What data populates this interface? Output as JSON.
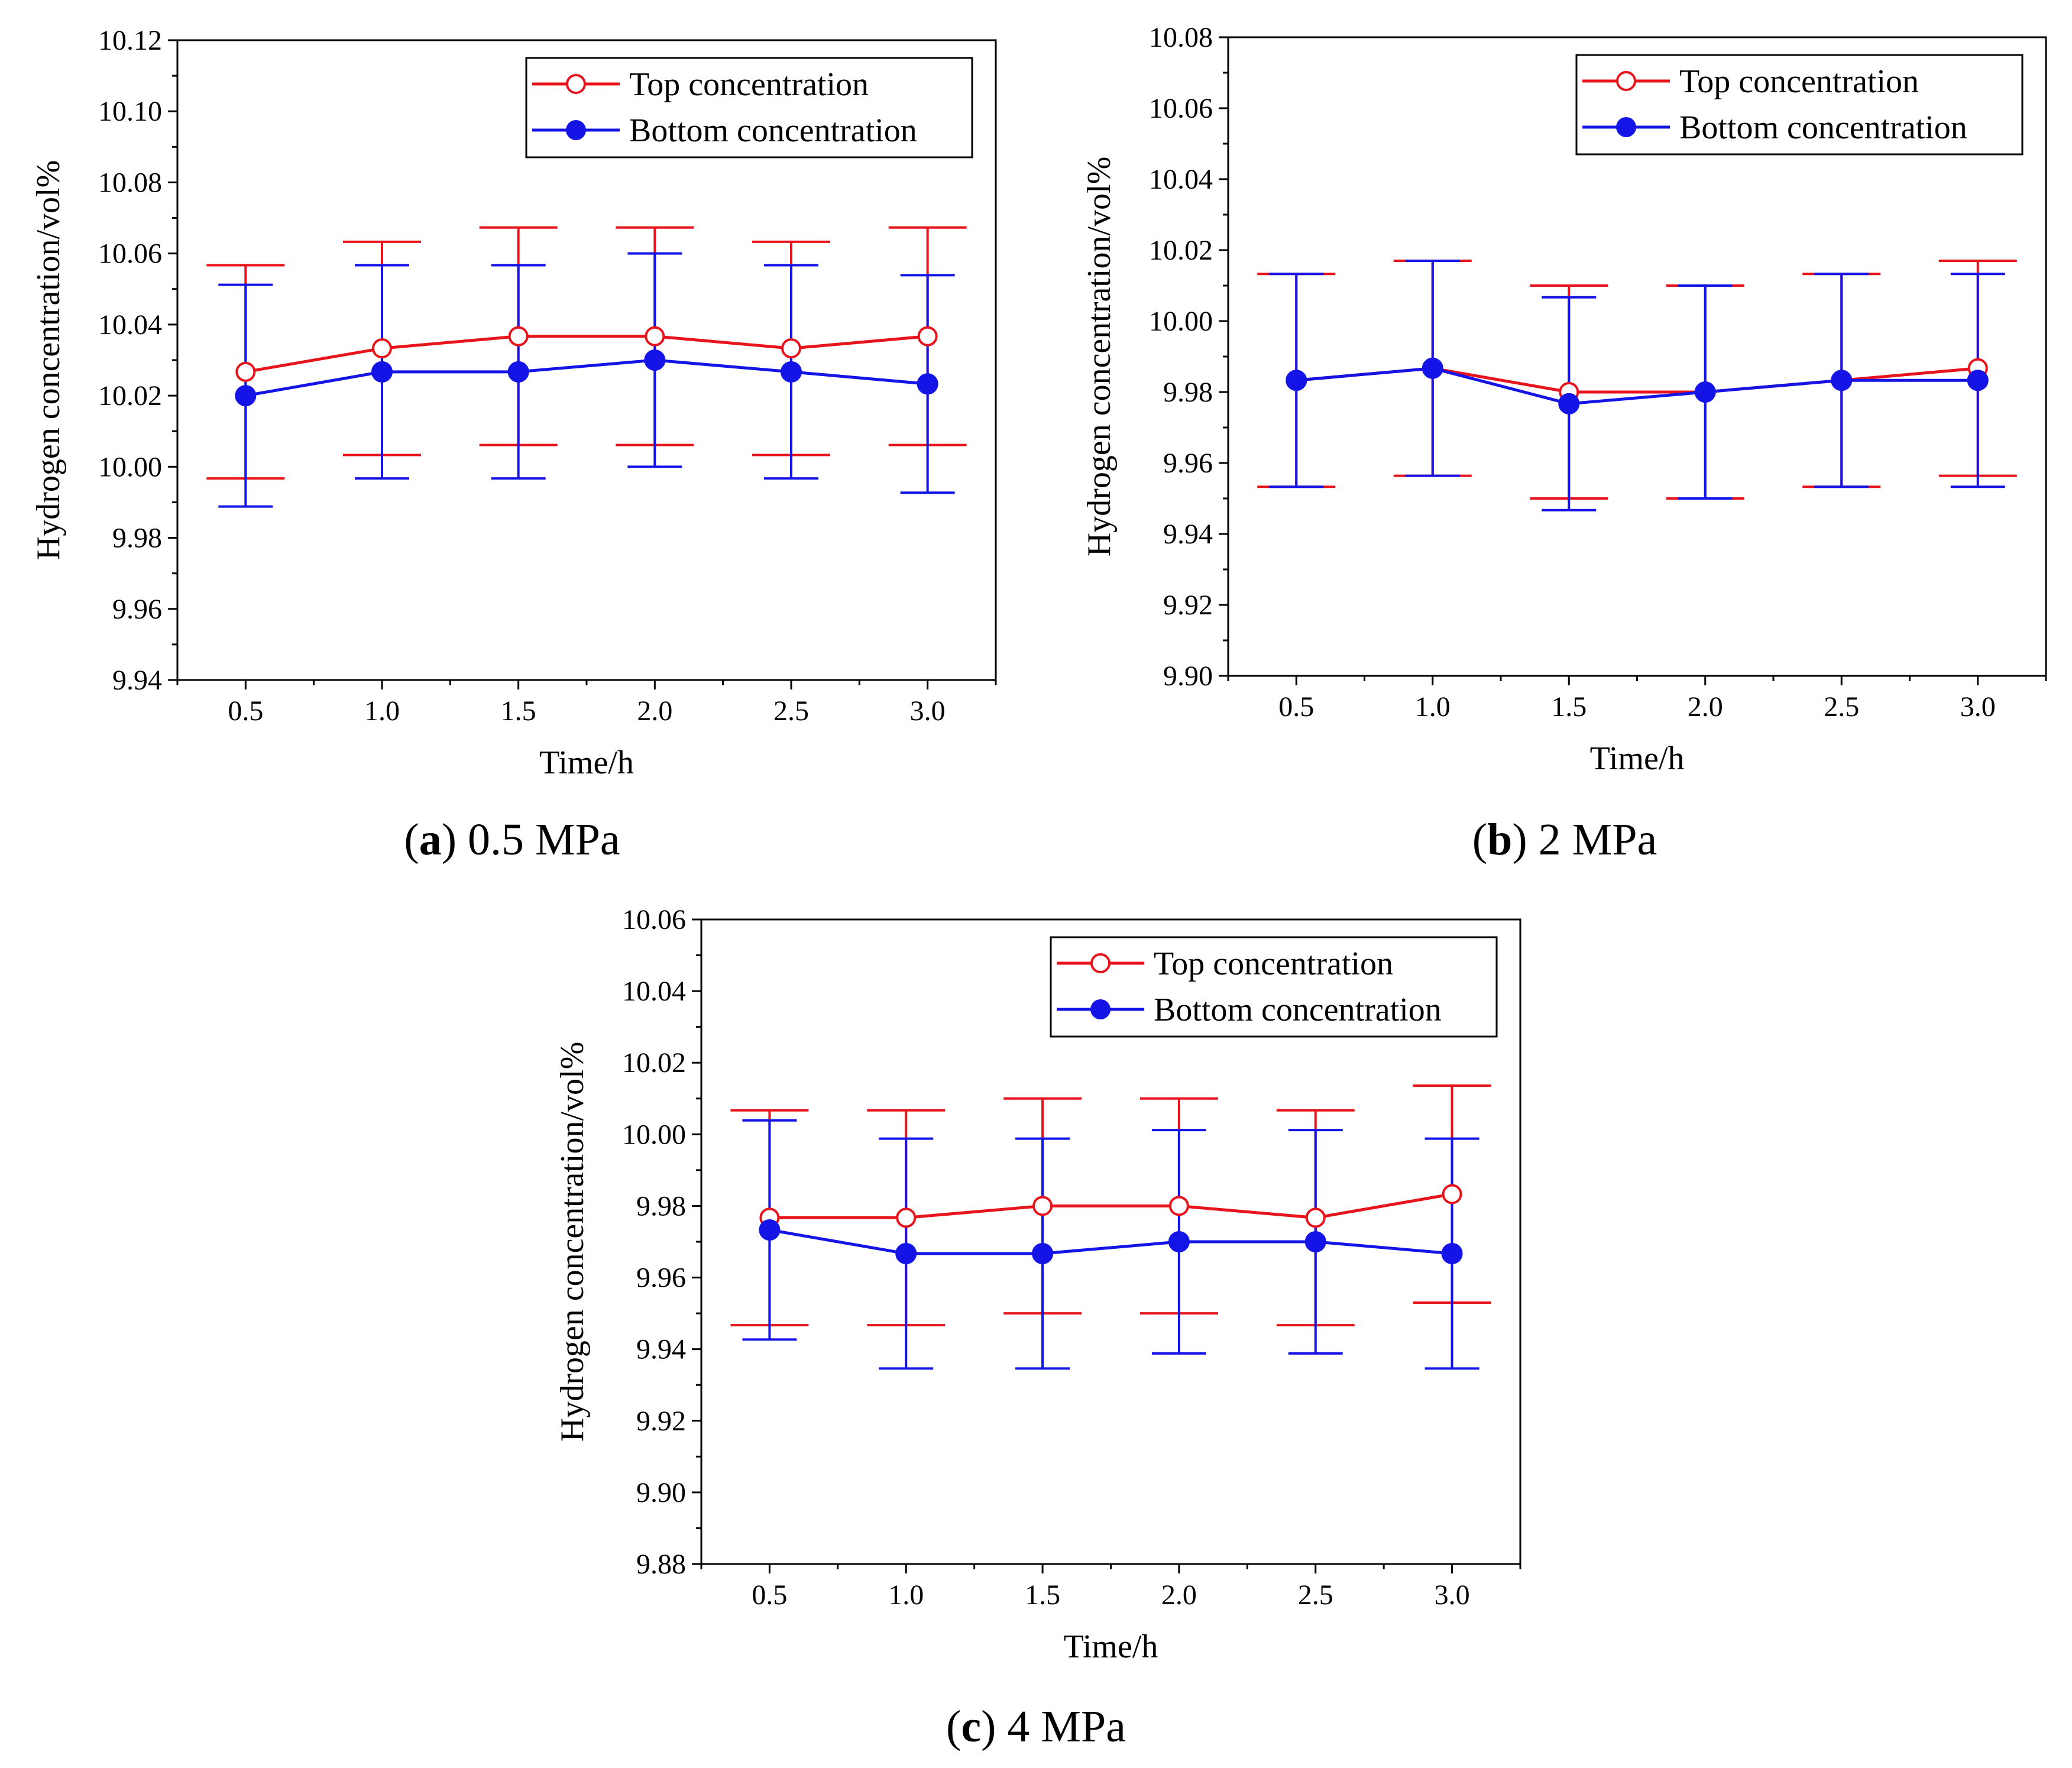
{
  "figure": {
    "panels": [
      {
        "letter": "a",
        "caption": "0.5 MPa"
      },
      {
        "letter": "b",
        "caption": "2 MPa"
      },
      {
        "letter": "c",
        "caption": "4 MPa"
      }
    ]
  },
  "colors": {
    "top": "#e8141b",
    "bottom": "#1414e6",
    "axis": "#000000"
  },
  "chart_data": [
    {
      "type": "line",
      "title": "",
      "xlabel": "Time/h",
      "ylabel": "Hydrogen concentration/vol%",
      "x": [
        0.5,
        1.0,
        1.5,
        2.0,
        2.5,
        3.0
      ],
      "x_ticks": [
        "0.5",
        "1.0",
        "1.5",
        "2.0",
        "2.5",
        "3.0"
      ],
      "xlim": [
        0.25,
        3.25
      ],
      "ylim": [
        9.94,
        10.12
      ],
      "y_ticks": [
        "9.94",
        "9.96",
        "9.98",
        "10.00",
        "10.02",
        "10.04",
        "10.06",
        "10.08",
        "10.10",
        "10.12"
      ],
      "legend_position": "top-right",
      "series": [
        {
          "name": "Top concentration",
          "marker": "open-circle",
          "values": [
            10.0267,
            10.0333,
            10.0367,
            10.0367,
            10.0333,
            10.0367
          ],
          "error": [
            0.03,
            0.03,
            0.0306,
            0.0306,
            0.03,
            0.0306
          ]
        },
        {
          "name": "Bottom concentration",
          "marker": "filled-circle",
          "values": [
            10.02,
            10.0267,
            10.0267,
            10.03,
            10.0267,
            10.0233
          ],
          "error": [
            0.0312,
            0.03,
            0.03,
            0.03,
            0.03,
            0.0306
          ]
        }
      ]
    },
    {
      "type": "line",
      "title": "",
      "xlabel": "Time/h",
      "ylabel": "Hydrogen concentration/vol%",
      "x": [
        0.5,
        1.0,
        1.5,
        2.0,
        2.5,
        3.0
      ],
      "x_ticks": [
        "0.5",
        "1.0",
        "1.5",
        "2.0",
        "2.5",
        "3.0"
      ],
      "xlim": [
        0.25,
        3.25
      ],
      "ylim": [
        9.9,
        10.08
      ],
      "y_ticks": [
        "9.90",
        "9.92",
        "9.94",
        "9.96",
        "9.98",
        "10.00",
        "10.02",
        "10.04",
        "10.06",
        "10.08"
      ],
      "legend_position": "top-right",
      "series": [
        {
          "name": "Top concentration",
          "marker": "open-circle",
          "values": [
            9.9833,
            9.9867,
            9.98,
            9.98,
            9.9833,
            9.9867
          ],
          "error": [
            0.03,
            0.0303,
            0.03,
            0.03,
            0.03,
            0.0303
          ]
        },
        {
          "name": "Bottom concentration",
          "marker": "filled-circle",
          "values": [
            9.9833,
            9.9867,
            9.9767,
            9.98,
            9.9833,
            9.9833
          ],
          "error": [
            0.03,
            0.0303,
            0.03,
            0.03,
            0.03,
            0.03
          ]
        }
      ]
    },
    {
      "type": "line",
      "title": "",
      "xlabel": "Time/h",
      "ylabel": "Hydrogen concentration/vol%",
      "x": [
        0.5,
        1.0,
        1.5,
        2.0,
        2.5,
        3.0
      ],
      "x_ticks": [
        "0.5",
        "1.0",
        "1.5",
        "2.0",
        "2.5",
        "3.0"
      ],
      "xlim": [
        0.25,
        3.25
      ],
      "ylim": [
        9.88,
        10.06
      ],
      "y_ticks": [
        "9.88",
        "9.90",
        "9.92",
        "9.94",
        "9.96",
        "9.98",
        "10.00",
        "10.02",
        "10.04",
        "10.06"
      ],
      "legend_position": "top-right",
      "series": [
        {
          "name": "Top concentration",
          "marker": "open-circle",
          "values": [
            9.9767,
            9.9767,
            9.98,
            9.98,
            9.9767,
            9.9833
          ],
          "error": [
            0.03,
            0.03,
            0.03,
            0.03,
            0.03,
            0.0303
          ]
        },
        {
          "name": "Bottom concentration",
          "marker": "filled-circle",
          "values": [
            9.9733,
            9.9667,
            9.9667,
            9.97,
            9.97,
            9.9667
          ],
          "error": [
            0.0306,
            0.0321,
            0.0321,
            0.0312,
            0.0312,
            0.0321
          ]
        }
      ]
    }
  ]
}
